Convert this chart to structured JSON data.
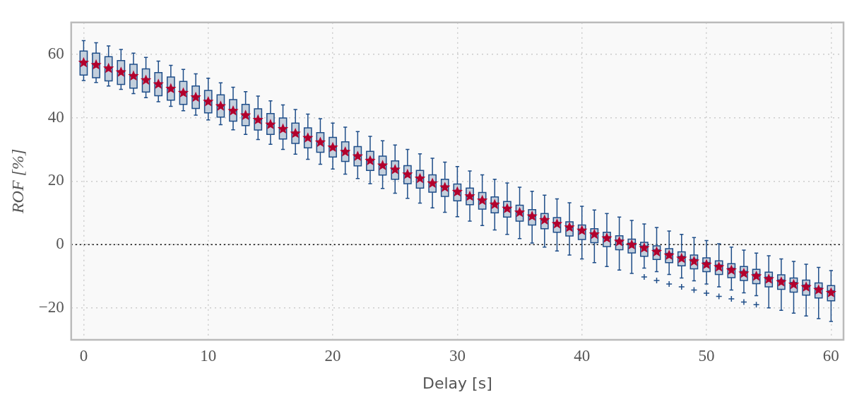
{
  "chart_data": {
    "type": "box",
    "xlabel": "Delay [s]",
    "ylabel": "ROF [%]",
    "color": "#1f4e89",
    "marker": "star",
    "x": [
      0,
      1,
      2,
      3,
      4,
      5,
      6,
      7,
      8,
      9,
      10,
      11,
      12,
      13,
      14,
      15,
      16,
      17,
      18,
      19,
      20,
      21,
      22,
      23,
      24,
      25,
      26,
      27,
      28,
      29,
      30,
      31,
      32,
      33,
      34,
      35,
      36,
      37,
      38,
      39,
      40,
      41,
      42,
      43,
      44,
      45,
      46,
      47,
      48,
      49,
      50,
      51,
      52,
      53,
      54,
      55,
      56,
      57,
      58,
      59,
      60
    ],
    "boxes": [
      {
        "low": 51.7,
        "q1": 53.4,
        "median": 57.5,
        "q3": 61.0,
        "high": 64.3,
        "mean": 57.5
      },
      {
        "low": 51.1,
        "q1": 52.6,
        "median": 56.8,
        "q3": 60.3,
        "high": 63.6,
        "mean": 56.8
      },
      {
        "low": 50.0,
        "q1": 51.6,
        "median": 55.7,
        "q3": 59.2,
        "high": 62.6,
        "mean": 55.7
      },
      {
        "low": 48.9,
        "q1": 50.5,
        "median": 54.5,
        "q3": 58.0,
        "high": 61.5,
        "mean": 54.5
      },
      {
        "low": 47.6,
        "q1": 49.3,
        "median": 53.3,
        "q3": 56.8,
        "high": 60.3,
        "mean": 53.3
      },
      {
        "low": 46.3,
        "q1": 48.1,
        "median": 52.0,
        "q3": 55.4,
        "high": 59.0,
        "mean": 52.0
      },
      {
        "low": 45.0,
        "q1": 46.9,
        "median": 50.7,
        "q3": 54.2,
        "high": 57.8,
        "mean": 50.7
      },
      {
        "low": 43.6,
        "q1": 45.5,
        "median": 49.3,
        "q3": 52.8,
        "high": 56.5,
        "mean": 49.3
      },
      {
        "low": 42.2,
        "q1": 44.2,
        "median": 48.0,
        "q3": 51.4,
        "high": 55.2,
        "mean": 48.0
      },
      {
        "low": 40.8,
        "q1": 42.9,
        "median": 46.6,
        "q3": 50.0,
        "high": 53.8,
        "mean": 46.6
      },
      {
        "low": 39.3,
        "q1": 41.5,
        "median": 45.2,
        "q3": 48.6,
        "high": 52.4,
        "mean": 45.2
      },
      {
        "low": 37.8,
        "q1": 40.2,
        "median": 43.8,
        "q3": 47.2,
        "high": 51.0,
        "mean": 43.8
      },
      {
        "low": 36.2,
        "q1": 38.9,
        "median": 42.3,
        "q3": 45.7,
        "high": 49.6,
        "mean": 42.3
      },
      {
        "low": 34.7,
        "q1": 37.5,
        "median": 40.9,
        "q3": 44.2,
        "high": 48.2,
        "mean": 40.9
      },
      {
        "low": 33.1,
        "q1": 36.1,
        "median": 39.5,
        "q3": 42.8,
        "high": 46.8,
        "mean": 39.5
      },
      {
        "low": 31.6,
        "q1": 34.7,
        "median": 38.0,
        "q3": 41.3,
        "high": 45.3,
        "mean": 38.0
      },
      {
        "low": 30.0,
        "q1": 33.3,
        "median": 36.6,
        "q3": 39.9,
        "high": 44.0,
        "mean": 36.6
      },
      {
        "low": 28.5,
        "q1": 31.9,
        "median": 35.2,
        "q3": 38.3,
        "high": 42.6,
        "mean": 35.2
      },
      {
        "low": 26.9,
        "q1": 30.5,
        "median": 33.8,
        "q3": 36.8,
        "high": 41.1,
        "mean": 33.8
      },
      {
        "low": 25.3,
        "q1": 29.1,
        "median": 32.4,
        "q3": 35.3,
        "high": 39.7,
        "mean": 32.4
      },
      {
        "low": 23.8,
        "q1": 27.6,
        "median": 30.8,
        "q3": 33.8,
        "high": 38.3,
        "mean": 30.8
      },
      {
        "low": 22.2,
        "q1": 26.2,
        "median": 29.4,
        "q3": 32.4,
        "high": 37.0,
        "mean": 29.4
      },
      {
        "low": 20.8,
        "q1": 24.8,
        "median": 28.0,
        "q3": 30.9,
        "high": 35.6,
        "mean": 28.0
      },
      {
        "low": 19.2,
        "q1": 23.4,
        "median": 26.6,
        "q3": 29.4,
        "high": 34.1,
        "mean": 26.6
      },
      {
        "low": 17.7,
        "q1": 21.9,
        "median": 25.1,
        "q3": 27.9,
        "high": 32.7,
        "mean": 25.1
      },
      {
        "low": 16.2,
        "q1": 20.6,
        "median": 23.8,
        "q3": 26.4,
        "high": 31.4,
        "mean": 23.8
      },
      {
        "low": 14.6,
        "q1": 19.2,
        "median": 22.3,
        "q3": 24.9,
        "high": 30.0,
        "mean": 22.3
      },
      {
        "low": 13.1,
        "q1": 17.8,
        "median": 21.0,
        "q3": 23.4,
        "high": 28.6,
        "mean": 21.0
      },
      {
        "low": 11.6,
        "q1": 16.5,
        "median": 19.5,
        "q3": 22.0,
        "high": 27.2,
        "mean": 19.5
      },
      {
        "low": 10.2,
        "q1": 15.2,
        "median": 18.2,
        "q3": 20.6,
        "high": 26.0,
        "mean": 18.2
      },
      {
        "low": 8.8,
        "q1": 13.8,
        "median": 16.8,
        "q3": 19.1,
        "high": 24.6,
        "mean": 16.8
      },
      {
        "low": 7.4,
        "q1": 12.6,
        "median": 15.4,
        "q3": 17.8,
        "high": 23.2,
        "mean": 15.4
      },
      {
        "low": 6.0,
        "q1": 11.2,
        "median": 14.1,
        "q3": 16.4,
        "high": 22.0,
        "mean": 14.1
      },
      {
        "low": 4.6,
        "q1": 10.0,
        "median": 12.8,
        "q3": 15.0,
        "high": 20.6,
        "mean": 12.8
      },
      {
        "low": 3.2,
        "q1": 8.7,
        "median": 11.5,
        "q3": 13.6,
        "high": 19.4,
        "mean": 11.5
      },
      {
        "low": 1.9,
        "q1": 7.4,
        "median": 10.3,
        "q3": 12.4,
        "high": 18.1,
        "mean": 10.3
      },
      {
        "low": 0.5,
        "q1": 6.2,
        "median": 9.1,
        "q3": 11.0,
        "high": 16.8,
        "mean": 9.1
      },
      {
        "low": -0.8,
        "q1": 5.0,
        "median": 7.9,
        "q3": 9.8,
        "high": 15.6,
        "mean": 7.9
      },
      {
        "low": -2.0,
        "q1": 3.9,
        "median": 6.7,
        "q3": 8.5,
        "high": 14.4,
        "mean": 6.7
      },
      {
        "low": -3.3,
        "q1": 2.7,
        "median": 5.6,
        "q3": 7.2,
        "high": 13.2,
        "mean": 5.6
      },
      {
        "low": -4.5,
        "q1": 1.6,
        "median": 4.6,
        "q3": 6.2,
        "high": 12.1,
        "mean": 4.6
      },
      {
        "low": -5.7,
        "q1": 0.6,
        "median": 3.4,
        "q3": 5.0,
        "high": 10.9,
        "mean": 3.4
      },
      {
        "low": -6.9,
        "q1": -0.6,
        "median": 2.2,
        "q3": 3.9,
        "high": 9.8,
        "mean": 2.2
      },
      {
        "low": -8.0,
        "q1": -1.6,
        "median": 1.3,
        "q3": 2.8,
        "high": 8.7,
        "mean": 1.1
      },
      {
        "low": -9.1,
        "q1": -2.6,
        "median": 0.3,
        "q3": 1.7,
        "high": 7.6,
        "mean": 0.1
      },
      {
        "low": -7.4,
        "q1": -3.7,
        "median": -0.6,
        "q3": 0.7,
        "high": 6.5,
        "mean": -0.9,
        "outliers": [
          -10.2
        ]
      },
      {
        "low": -8.5,
        "q1": -4.7,
        "median": -1.8,
        "q3": -0.4,
        "high": 5.4,
        "mean": -2.1,
        "outliers": [
          -11.3
        ]
      },
      {
        "low": -9.4,
        "q1": -5.7,
        "median": -2.9,
        "q3": -1.3,
        "high": 4.3,
        "mean": -3.2,
        "outliers": [
          -12.4
        ]
      },
      {
        "low": -10.5,
        "q1": -6.7,
        "median": -3.9,
        "q3": -2.3,
        "high": 3.2,
        "mean": -4.2,
        "outliers": [
          -13.3
        ]
      },
      {
        "low": -11.4,
        "q1": -7.6,
        "median": -4.8,
        "q3": -3.3,
        "high": 2.2,
        "mean": -5.1,
        "outliers": [
          -14.3
        ]
      },
      {
        "low": -12.4,
        "q1": -8.5,
        "median": -5.8,
        "q3": -4.2,
        "high": 1.3,
        "mean": -6.1,
        "outliers": [
          -15.3
        ]
      },
      {
        "low": -13.3,
        "q1": -9.4,
        "median": -6.6,
        "q3": -5.1,
        "high": 0.3,
        "mean": -6.9,
        "outliers": [
          -16.3
        ]
      },
      {
        "low": -14.3,
        "q1": -10.4,
        "median": -7.6,
        "q3": -6.0,
        "high": -0.8,
        "mean": -7.9,
        "outliers": [
          -17.1
        ]
      },
      {
        "low": -15.2,
        "q1": -11.3,
        "median": -8.6,
        "q3": -6.9,
        "high": -1.7,
        "mean": -8.9,
        "outliers": [
          -18.1
        ]
      },
      {
        "low": -16.1,
        "q1": -12.3,
        "median": -9.5,
        "q3": -7.8,
        "high": -2.7,
        "mean": -9.8,
        "outliers": [
          -18.9
        ]
      },
      {
        "low": -19.9,
        "q1": -13.3,
        "median": -10.4,
        "q3": -8.7,
        "high": -3.5,
        "mean": -10.7
      },
      {
        "low": -20.7,
        "q1": -14.1,
        "median": -11.3,
        "q3": -9.5,
        "high": -4.5,
        "mean": -11.6
      },
      {
        "low": -21.6,
        "q1": -15.0,
        "median": -12.1,
        "q3": -10.5,
        "high": -5.3,
        "mean": -12.4
      },
      {
        "low": -22.5,
        "q1": -15.9,
        "median": -12.9,
        "q3": -11.2,
        "high": -6.2,
        "mean": -13.2
      },
      {
        "low": -23.3,
        "q1": -16.8,
        "median": -13.8,
        "q3": -12.1,
        "high": -7.2,
        "mean": -14.1
      },
      {
        "low": -24.2,
        "q1": -17.7,
        "median": -14.7,
        "q3": -12.9,
        "high": -8.2,
        "mean": -15.0
      }
    ],
    "xlim": [
      -1,
      61
    ],
    "xticks": [
      0,
      10,
      20,
      30,
      40,
      50,
      60
    ],
    "ylim": [
      -30,
      70
    ],
    "yticks": [
      -20,
      0,
      20,
      40,
      60
    ],
    "grid": true,
    "ref_lines": [
      {
        "axis": "y",
        "value": 0,
        "color": "#000000",
        "line_style": "dotted"
      }
    ]
  }
}
